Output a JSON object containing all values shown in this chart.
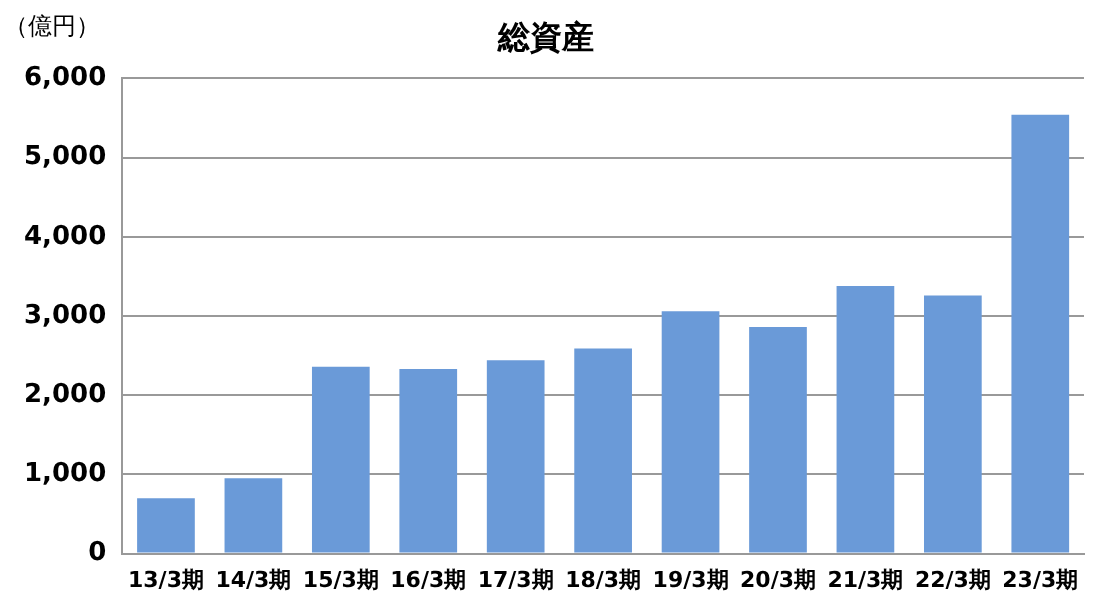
{
  "chart_data": {
    "type": "bar",
    "title": "総資産",
    "ylabel": "（億円）",
    "categories": [
      "13/3期",
      "14/3期",
      "15/3期",
      "16/3期",
      "17/3期",
      "18/3期",
      "19/3期",
      "20/3期",
      "21/3期",
      "22/3期",
      "23/3期"
    ],
    "values": [
      700,
      950,
      2360,
      2330,
      2440,
      2590,
      3060,
      2860,
      3380,
      3260,
      5540
    ],
    "color": "#6a9ad8",
    "ylim": [
      0,
      6000
    ],
    "yticks": [
      0,
      {
        "value": 1000,
        "label": "1,000"
      },
      {
        "value": 2000,
        "label": "2,000"
      },
      {
        "value": 3000,
        "label": "3,000"
      },
      {
        "value": 4000,
        "label": "4,000"
      },
      {
        "value": 5000,
        "label": "5,000"
      },
      {
        "value": 6000,
        "label": "6,000"
      }
    ],
    "grid": "y",
    "legend": false
  }
}
